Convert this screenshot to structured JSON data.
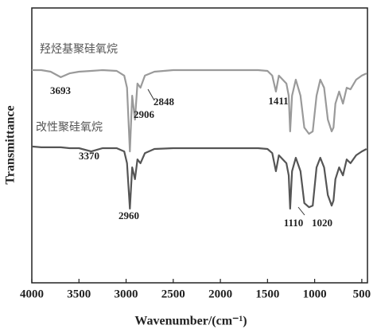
{
  "chart_data": {
    "type": "line",
    "xlabel": "Wavenumber/(cm⁻¹)",
    "ylabel": "Transmittance",
    "x": [
      4000,
      3900,
      3800,
      3693,
      3600,
      3500,
      3370,
      3250,
      3100,
      3020,
      2990,
      2960,
      2935,
      2906,
      2880,
      2848,
      2800,
      2700,
      2500,
      2000,
      1600,
      1500,
      1450,
      1411,
      1380,
      1300,
      1275,
      1260,
      1240,
      1200,
      1150,
      1110,
      1060,
      1020,
      980,
      940,
      900,
      860,
      820,
      800,
      780,
      740,
      700,
      660,
      620,
      560,
      500,
      450
    ],
    "series": [
      {
        "name": "羟烃基聚硅氧烷",
        "color": "#9a9a9a",
        "values": [
          77.4,
          77.4,
          76.8,
          74.8,
          76.2,
          76.8,
          77.1,
          77.4,
          77.1,
          75.4,
          71.0,
          47.8,
          68.1,
          59.4,
          72.5,
          71.0,
          75.4,
          76.8,
          77.4,
          77.4,
          77.4,
          77.1,
          75.4,
          69.6,
          75.4,
          72.5,
          68.1,
          55.1,
          68.1,
          73.9,
          68.1,
          56.5,
          54.2,
          55.1,
          68.1,
          73.9,
          71.0,
          59.4,
          55.1,
          56.5,
          65.2,
          69.6,
          65.2,
          71.0,
          70.4,
          73.9,
          75.4,
          76.2
        ]
      },
      {
        "name": "改性聚硅氧烷",
        "color": "#555555",
        "values": [
          49.6,
          49.3,
          49.3,
          49.3,
          49.0,
          49.0,
          47.8,
          49.0,
          49.0,
          47.8,
          43.5,
          27.0,
          42.0,
          37.7,
          44.9,
          43.5,
          47.2,
          48.7,
          49.0,
          49.0,
          49.0,
          48.7,
          47.2,
          40.6,
          46.4,
          43.5,
          39.1,
          27.0,
          40.6,
          45.5,
          40.6,
          29.0,
          27.5,
          28.1,
          42.0,
          45.5,
          42.0,
          31.9,
          28.1,
          29.9,
          37.7,
          42.0,
          39.1,
          44.9,
          43.5,
          46.4,
          47.8,
          48.7
        ]
      }
    ],
    "annotations": [
      "3693",
      "2906",
      "2848",
      "1411",
      "3370",
      "2960",
      "1110",
      "1020"
    ],
    "xlim": [
      4000,
      440
    ],
    "xticks": [
      4000,
      3500,
      3000,
      2500,
      2000,
      1500,
      1000,
      500
    ],
    "ylim": [
      0,
      100
    ]
  }
}
